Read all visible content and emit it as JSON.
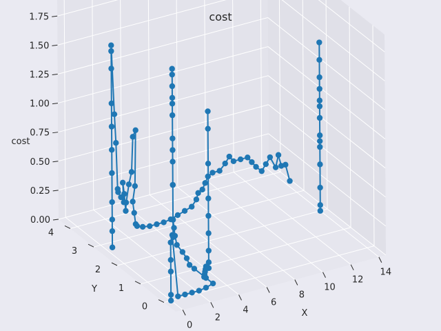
{
  "chart_data": {
    "type": "line",
    "title": "cost",
    "xlabel": "X",
    "ylabel": "Y",
    "zlabel": "cost",
    "x_ticks": [
      "0",
      "2",
      "4",
      "6",
      "8",
      "10",
      "12",
      "14"
    ],
    "y_ticks": [
      "0",
      "1",
      "2",
      "3",
      "4"
    ],
    "z_ticks": [
      "0.00",
      "0.25",
      "0.50",
      "0.75",
      "1.00",
      "1.25",
      "1.50",
      "1.75"
    ],
    "xlim": [
      -0.5,
      14.5
    ],
    "ylim": [
      -0.5,
      4.5
    ],
    "zlim": [
      0,
      1.9
    ],
    "grid": true,
    "marker": "circle",
    "colors": {
      "background": "#eaeaf2",
      "pane": "#e6e6ee",
      "grid": "#ffffff",
      "series": "#1f77b4"
    },
    "series": [
      {
        "points": [
          [
            0,
            0,
            0.0
          ],
          [
            0,
            0,
            0.05
          ],
          [
            0,
            0,
            0.25
          ],
          [
            0,
            0,
            0.35
          ],
          [
            0,
            0,
            0.5
          ],
          [
            0.2,
            0.05,
            0.55
          ],
          [
            0.5,
            0,
            0.02
          ],
          [
            1,
            0,
            0.02
          ],
          [
            1.5,
            0,
            0.02
          ],
          [
            2,
            0,
            0.02
          ],
          [
            2.5,
            0,
            0.03
          ],
          [
            3,
            0,
            0.05
          ],
          [
            3,
            0.3,
            0.05
          ],
          [
            3,
            0.8,
            0.05
          ],
          [
            3,
            1.0,
            0.05
          ],
          [
            3.3,
            1.3,
            0.05
          ],
          [
            3.5,
            1.6,
            0.05
          ],
          [
            3.6,
            1.9,
            0.06
          ],
          [
            3.8,
            2.1,
            0.1
          ],
          [
            3.9,
            2.2,
            0.15
          ],
          [
            4,
            2.3,
            0.2
          ],
          [
            4,
            2.3,
            0.5
          ],
          [
            4,
            2.3,
            0.7
          ],
          [
            4,
            2.3,
            0.9
          ],
          [
            4,
            2.3,
            1.1
          ],
          [
            4,
            2.3,
            1.25
          ],
          [
            4,
            2.3,
            1.35
          ],
          [
            4,
            2.3,
            1.45
          ],
          [
            4,
            2.3,
            1.5
          ],
          [
            4,
            2.3,
            1.2
          ],
          [
            4,
            2.3,
            0.8
          ],
          [
            4,
            2.3,
            0.5
          ],
          [
            4,
            2.3,
            0.2
          ],
          [
            4,
            2.3,
            0.05
          ]
        ]
      },
      {
        "points": [
          [
            0,
            2.5,
            0.06
          ],
          [
            0,
            2.5,
            0.2
          ],
          [
            0,
            2.5,
            0.3
          ],
          [
            0,
            2.5,
            0.45
          ],
          [
            0,
            2.5,
            0.7
          ],
          [
            0,
            2.5,
            0.9
          ],
          [
            0,
            2.5,
            1.1
          ],
          [
            0,
            2.5,
            1.3
          ],
          [
            0,
            2.5,
            1.6
          ],
          [
            0,
            2.5,
            1.75
          ],
          [
            0,
            2.5,
            1.8
          ],
          [
            0.2,
            2.5,
            1.2
          ],
          [
            0.3,
            2.5,
            0.95
          ],
          [
            0.4,
            2.5,
            0.55
          ],
          [
            0.6,
            2.6,
            0.5
          ],
          [
            0.8,
            2.6,
            0.45
          ],
          [
            1,
            2.6,
            0.4
          ],
          [
            1.1,
            2.7,
            0.55
          ],
          [
            1.2,
            2.7,
            0.45
          ],
          [
            1.3,
            2.7,
            0.3
          ],
          [
            1.5,
            2.8,
            0.35
          ],
          [
            1.7,
            2.8,
            0.5
          ],
          [
            1.9,
            2.8,
            0.6
          ],
          [
            2,
            2.8,
            0.9
          ],
          [
            2.2,
            2.8,
            0.95
          ],
          [
            2.3,
            2.9,
            0.45
          ],
          [
            2.3,
            3.0,
            0.3
          ],
          [
            2.4,
            3.0,
            0.2
          ],
          [
            2.5,
            3.0,
            0.1
          ],
          [
            2.6,
            3.0,
            0.08
          ],
          [
            3,
            3.0,
            0.06
          ],
          [
            3.5,
            3.0,
            0.05
          ],
          [
            4,
            3.0,
            0.05
          ],
          [
            4.5,
            3.0,
            0.05
          ],
          [
            5,
            3.0,
            0.06
          ],
          [
            5.5,
            3.0,
            0.08
          ],
          [
            6,
            3.0,
            0.1
          ],
          [
            6.5,
            3.0,
            0.12
          ],
          [
            7,
            3.1,
            0.15
          ],
          [
            7.3,
            3.2,
            0.18
          ],
          [
            7.6,
            3.2,
            0.2
          ],
          [
            7.8,
            3.2,
            0.25
          ],
          [
            8,
            3.2,
            0.3
          ],
          [
            8.5,
            3.3,
            0.3
          ],
          [
            9,
            3.3,
            0.3
          ],
          [
            9.4,
            3.3,
            0.35
          ],
          [
            9.7,
            3.3,
            0.4
          ],
          [
            10,
            3.3,
            0.35
          ],
          [
            10.5,
            3.3,
            0.35
          ],
          [
            11,
            3.3,
            0.35
          ],
          [
            11.3,
            3.3,
            0.3
          ],
          [
            11.6,
            3.3,
            0.25
          ],
          [
            12,
            3.3,
            0.2
          ],
          [
            12.3,
            3.3,
            0.25
          ],
          [
            12.6,
            3.3,
            0.3
          ],
          [
            13,
            3.3,
            0.2
          ],
          [
            13.2,
            3.3,
            0.3
          ],
          [
            13.4,
            3.3,
            0.2
          ],
          [
            13.7,
            3.3,
            0.2
          ],
          [
            14,
            3.3,
            0.05
          ]
        ]
      },
      {
        "points": [
          [
            14,
            2.0,
            0.55
          ],
          [
            14,
            2.0,
            0.65
          ],
          [
            14,
            2.0,
            0.8
          ],
          [
            14,
            2.0,
            0.95
          ],
          [
            14,
            2.0,
            1.05
          ],
          [
            14,
            2.0,
            1.15
          ],
          [
            14,
            2.0,
            1.3
          ],
          [
            14,
            2.0,
            1.45
          ],
          [
            14,
            2.0,
            0.9
          ],
          [
            14,
            2.0,
            0.6
          ],
          [
            14,
            2.0,
            0.4
          ],
          [
            14,
            2.0,
            0.2
          ],
          [
            14,
            2.0,
            0.05
          ],
          [
            14,
            2.0,
            0.0
          ]
        ]
      },
      {
        "points": [
          [
            4.2,
            0.9,
            1.35
          ],
          [
            4.2,
            0.9,
            1.2
          ],
          [
            4.2,
            0.9,
            0.9
          ],
          [
            4.2,
            0.9,
            0.6
          ],
          [
            4.2,
            0.9,
            0.45
          ],
          [
            4.2,
            0.9,
            0.3
          ],
          [
            4.2,
            0.9,
            0.15
          ],
          [
            4.2,
            0.9,
            0.05
          ],
          [
            4.2,
            0.9,
            0.0
          ],
          [
            4.0,
            0.9,
            0.02
          ],
          [
            3.8,
            0.8,
            0.02
          ],
          [
            3.6,
            0.7,
            0.02
          ],
          [
            3.4,
            0.6,
            0.02
          ],
          [
            3.2,
            0.5,
            0.02
          ]
        ]
      }
    ]
  }
}
